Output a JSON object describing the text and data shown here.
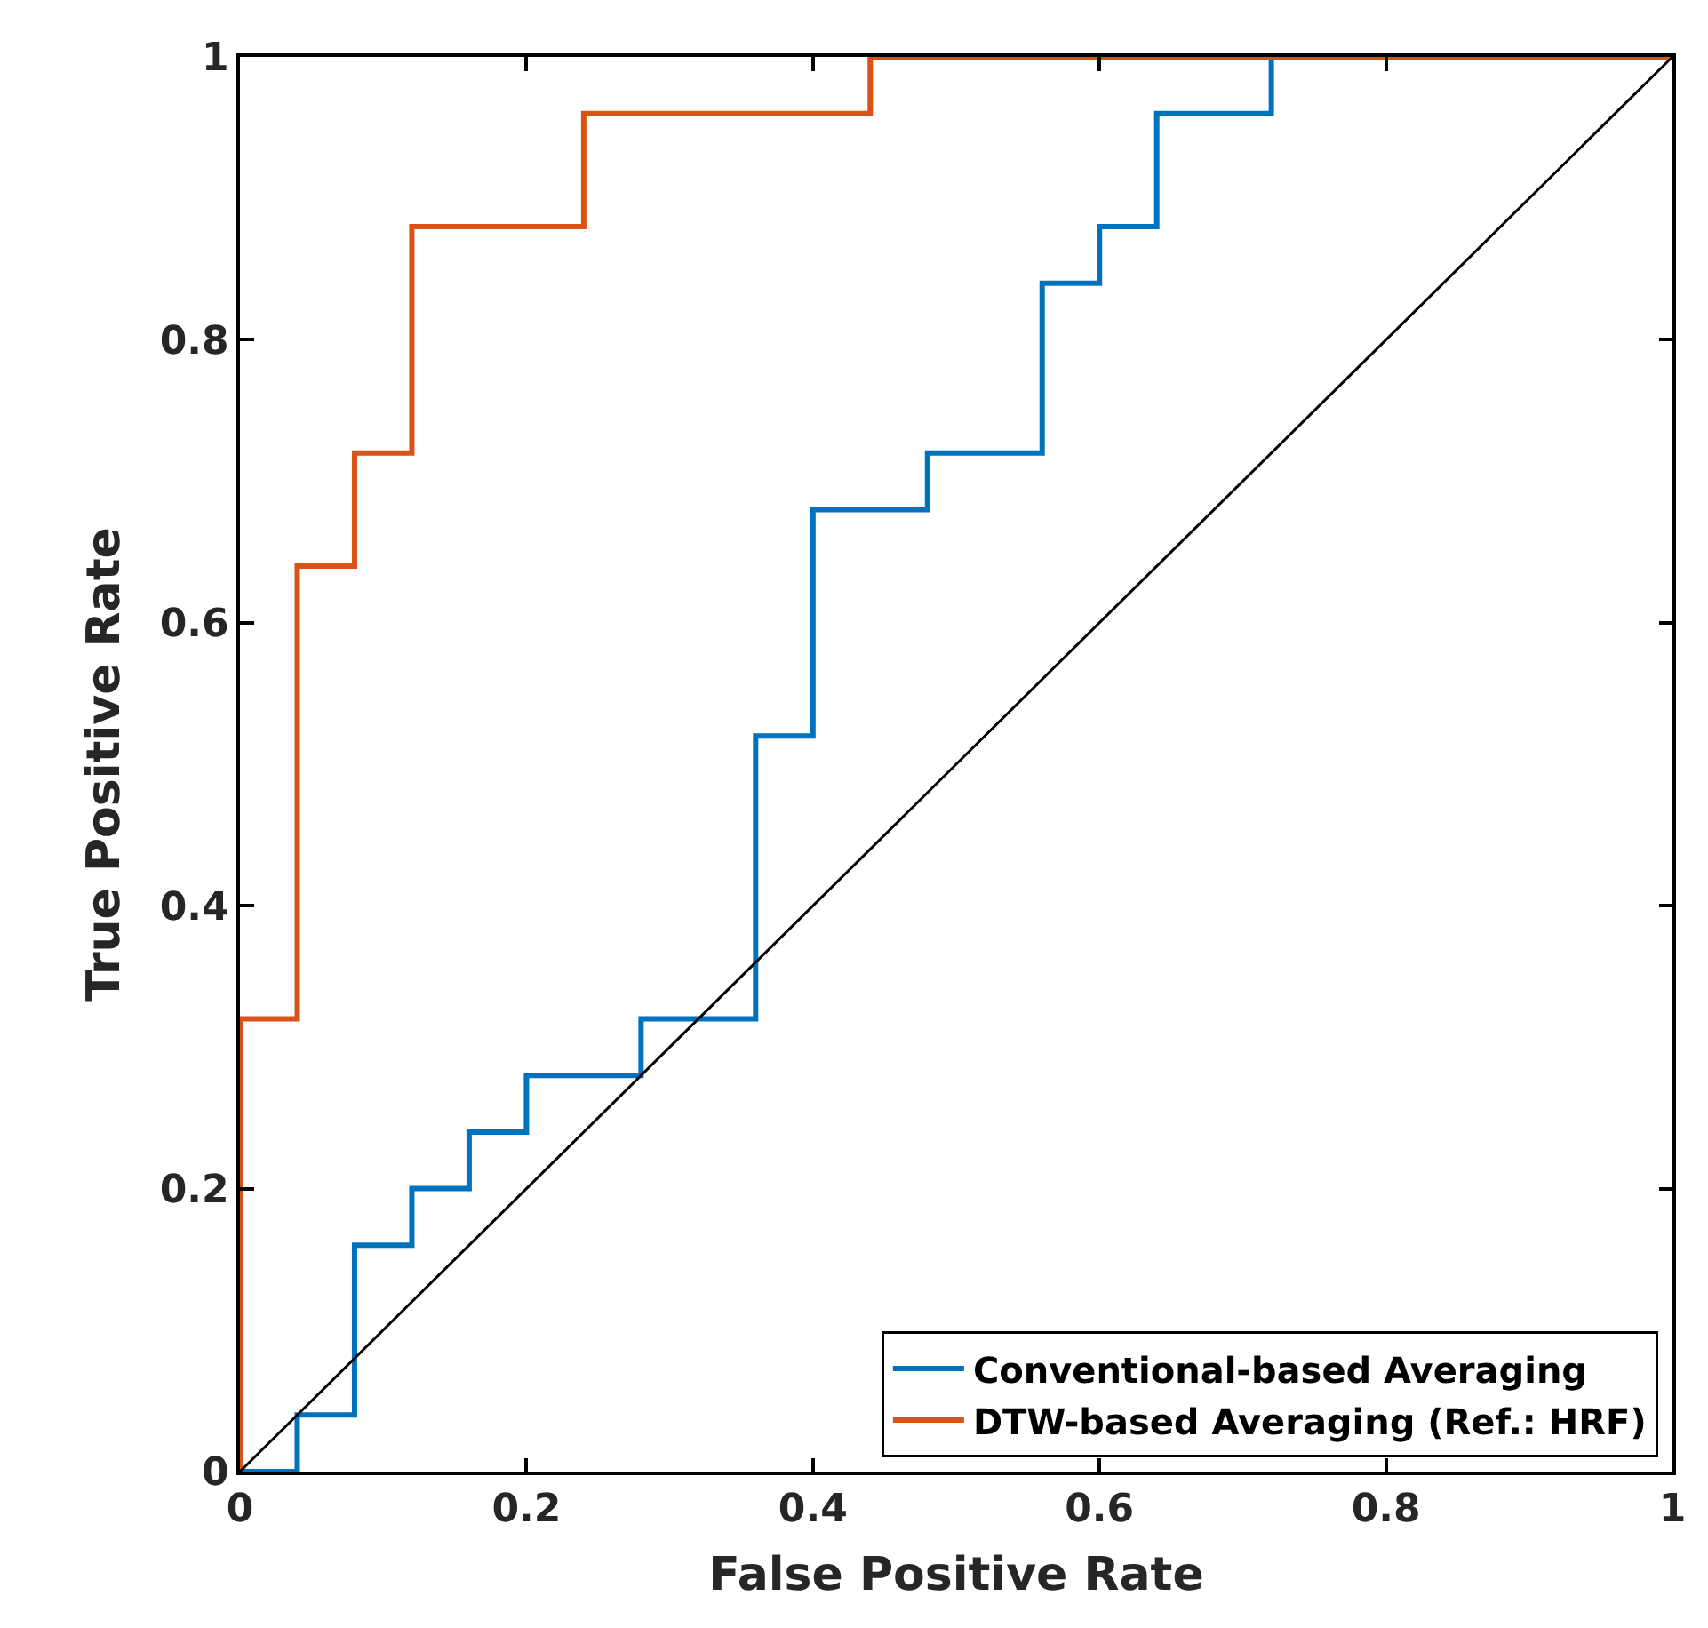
{
  "chart_data": {
    "type": "step",
    "xlabel": "False Positive Rate",
    "ylabel": "True Positive Rate",
    "xlim": [
      0,
      1
    ],
    "ylim": [
      0,
      1
    ],
    "xticks": [
      0,
      0.2,
      0.4,
      0.6,
      0.8,
      1
    ],
    "yticks": [
      0,
      0.2,
      0.4,
      0.6,
      0.8,
      1
    ],
    "legend": "bottom right",
    "marker": "none",
    "line_style": "solid",
    "series": [
      {
        "name": "Conventional-based Averaging",
        "color": "#0072bd",
        "x": [
          0,
          0.04,
          0.08,
          0.12,
          0.16,
          0.2,
          0.28,
          0.36,
          0.4,
          0.48,
          0.56,
          0.6,
          0.64,
          0.72,
          1
        ],
        "values": [
          0,
          0.04,
          0.16,
          0.2,
          0.24,
          0.28,
          0.32,
          0.52,
          0.68,
          0.72,
          0.84,
          0.88,
          0.96,
          1,
          1
        ]
      },
      {
        "name": "DTW-based Averaging (Ref.: HRF)",
        "color": "#d95319",
        "x": [
          0,
          0,
          0.04,
          0.08,
          0.12,
          0.24,
          0.44,
          1
        ],
        "values": [
          0,
          0.32,
          0.64,
          0.72,
          0.88,
          0.96,
          1,
          1
        ]
      },
      {
        "type": "line",
        "color": "#000000",
        "x": [
          0,
          1
        ],
        "values": [
          0,
          1
        ]
      }
    ]
  }
}
